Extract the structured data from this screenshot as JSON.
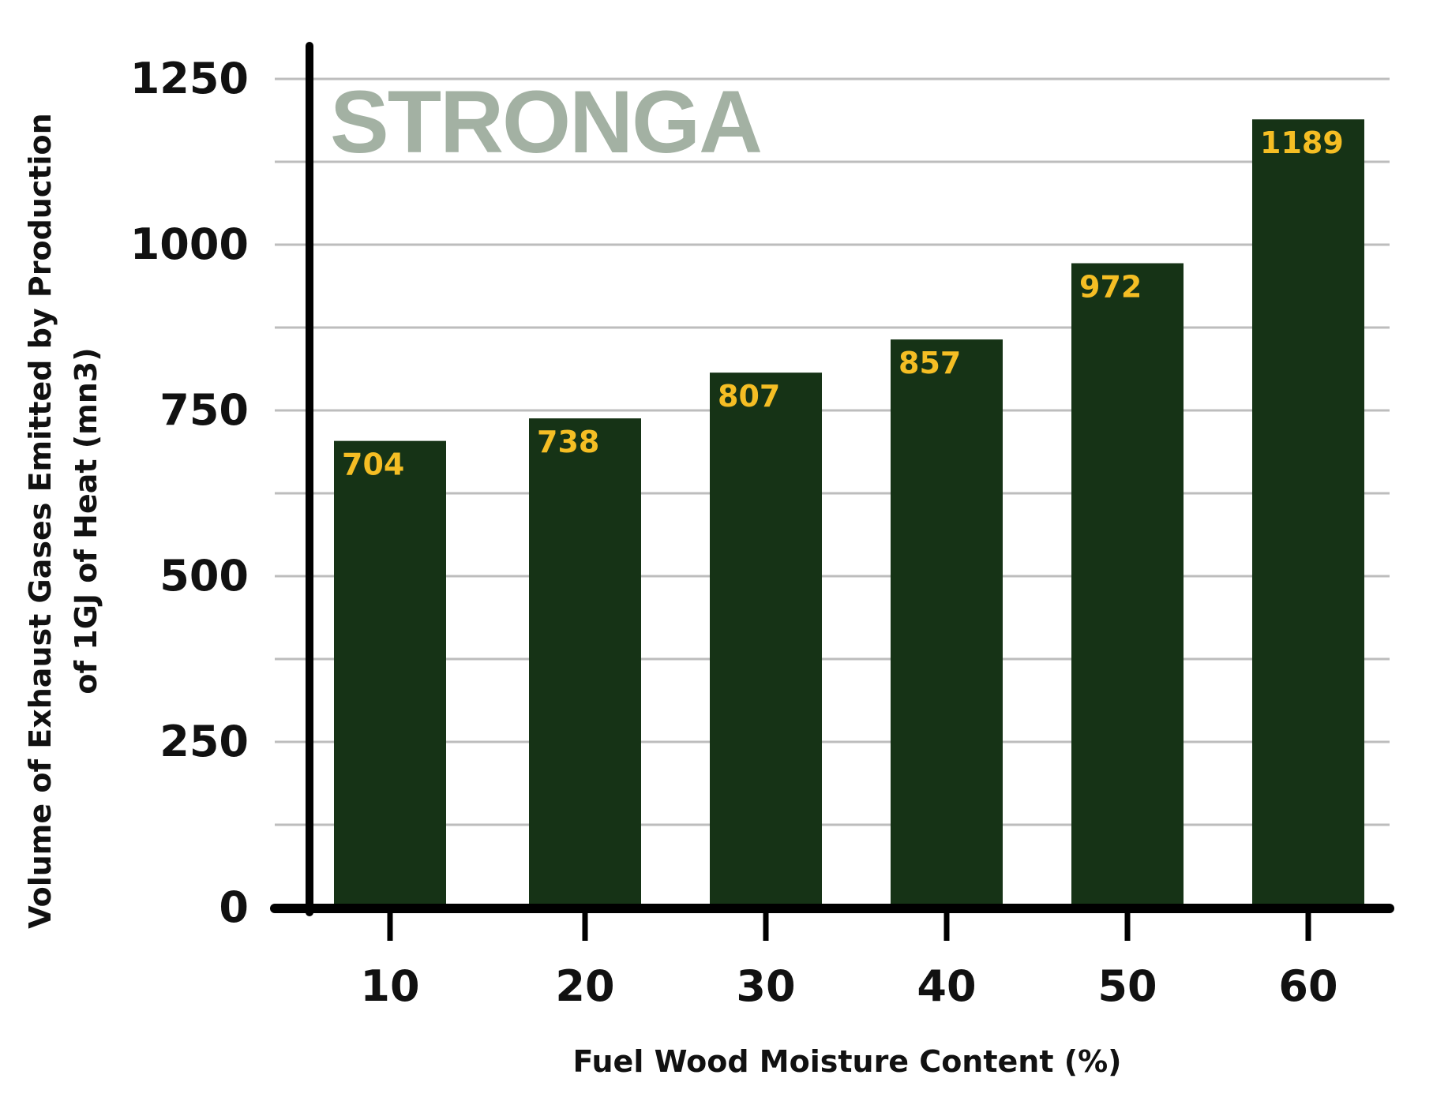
{
  "brand": {
    "watermark": "STRONGA",
    "watermark_color": "#a3b1a3"
  },
  "colors": {
    "bar": "#163316",
    "data_label": "#f5be24",
    "grid": "#bdbdbd",
    "axis": "#000000",
    "text": "#111111"
  },
  "chart_data": {
    "type": "bar",
    "title": "",
    "xlabel": "Fuel Wood Moisture Content (%)",
    "ylabel_lines": [
      "Volume of Exhaust Gases Emitted by Production",
      "of 1GJ of Heat (mn3)"
    ],
    "categories": [
      "10",
      "20",
      "30",
      "40",
      "50",
      "60"
    ],
    "values": [
      704,
      738,
      807,
      857,
      972,
      1189
    ],
    "data_labels": [
      "704",
      "738",
      "807",
      "857",
      "972",
      "1189"
    ],
    "ylim": [
      0,
      1250
    ],
    "yticks": [
      0,
      250,
      500,
      750,
      1000,
      1250
    ],
    "ytick_labels": [
      "0",
      "250",
      "500",
      "750",
      "1000",
      "1250"
    ],
    "minor_grid_step": 125,
    "grid": true
  }
}
